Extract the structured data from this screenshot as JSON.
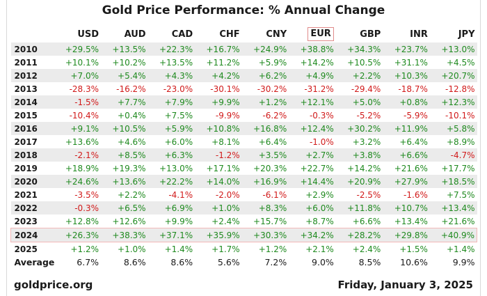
{
  "chart_data": {
    "type": "table",
    "title": "Gold Price Performance: % Annual Change",
    "columns": [
      "USD",
      "AUD",
      "CAD",
      "CHF",
      "CNY",
      "EUR",
      "GBP",
      "INR",
      "JPY"
    ],
    "highlighted_column": "EUR",
    "highlighted_row": "2024",
    "rows": [
      {
        "year": "2010",
        "values": [
          "+29.5%",
          "+13.5%",
          "+22.3%",
          "+16.7%",
          "+24.9%",
          "+38.8%",
          "+34.3%",
          "+23.7%",
          "+13.0%"
        ]
      },
      {
        "year": "2011",
        "values": [
          "+10.1%",
          "+10.2%",
          "+13.5%",
          "+11.2%",
          "+5.9%",
          "+14.2%",
          "+10.5%",
          "+31.1%",
          "+4.5%"
        ]
      },
      {
        "year": "2012",
        "values": [
          "+7.0%",
          "+5.4%",
          "+4.3%",
          "+4.2%",
          "+6.2%",
          "+4.9%",
          "+2.2%",
          "+10.3%",
          "+20.7%"
        ]
      },
      {
        "year": "2013",
        "values": [
          "-28.3%",
          "-16.2%",
          "-23.0%",
          "-30.1%",
          "-30.2%",
          "-31.2%",
          "-29.4%",
          "-18.7%",
          "-12.8%"
        ]
      },
      {
        "year": "2014",
        "values": [
          "-1.5%",
          "+7.7%",
          "+7.9%",
          "+9.9%",
          "+1.2%",
          "+12.1%",
          "+5.0%",
          "+0.8%",
          "+12.3%"
        ]
      },
      {
        "year": "2015",
        "values": [
          "-10.4%",
          "+0.4%",
          "+7.5%",
          "-9.9%",
          "-6.2%",
          "-0.3%",
          "-5.2%",
          "-5.9%",
          "-10.1%"
        ]
      },
      {
        "year": "2016",
        "values": [
          "+9.1%",
          "+10.5%",
          "+5.9%",
          "+10.8%",
          "+16.8%",
          "+12.4%",
          "+30.2%",
          "+11.9%",
          "+5.8%"
        ]
      },
      {
        "year": "2017",
        "values": [
          "+13.6%",
          "+4.6%",
          "+6.0%",
          "+8.1%",
          "+6.4%",
          "-1.0%",
          "+3.2%",
          "+6.4%",
          "+8.9%"
        ]
      },
      {
        "year": "2018",
        "values": [
          "-2.1%",
          "+8.5%",
          "+6.3%",
          "-1.2%",
          "+3.5%",
          "+2.7%",
          "+3.8%",
          "+6.6%",
          "-4.7%"
        ]
      },
      {
        "year": "2019",
        "values": [
          "+18.9%",
          "+19.3%",
          "+13.0%",
          "+17.1%",
          "+20.3%",
          "+22.7%",
          "+14.2%",
          "+21.6%",
          "+17.7%"
        ]
      },
      {
        "year": "2020",
        "values": [
          "+24.6%",
          "+13.6%",
          "+22.2%",
          "+14.0%",
          "+16.9%",
          "+14.4%",
          "+20.9%",
          "+27.9%",
          "+18.5%"
        ]
      },
      {
        "year": "2021",
        "values": [
          "-3.5%",
          "+2.2%",
          "-4.1%",
          "-2.0%",
          "-6.1%",
          "+2.9%",
          "-2.5%",
          "-1.6%",
          "+7.5%"
        ]
      },
      {
        "year": "2022",
        "values": [
          "-0.3%",
          "+6.5%",
          "+6.9%",
          "+1.0%",
          "+8.3%",
          "+6.0%",
          "+11.8%",
          "+10.7%",
          "+13.4%"
        ]
      },
      {
        "year": "2023",
        "values": [
          "+12.8%",
          "+12.6%",
          "+9.9%",
          "+2.4%",
          "+15.7%",
          "+8.7%",
          "+6.6%",
          "+13.4%",
          "+21.6%"
        ]
      },
      {
        "year": "2024",
        "values": [
          "+26.3%",
          "+38.3%",
          "+37.1%",
          "+35.9%",
          "+30.3%",
          "+34.2%",
          "+28.2%",
          "+29.8%",
          "+40.9%"
        ]
      },
      {
        "year": "2025",
        "values": [
          "+1.2%",
          "+1.0%",
          "+1.4%",
          "+1.7%",
          "+1.2%",
          "+2.1%",
          "+2.4%",
          "+1.5%",
          "+1.4%"
        ]
      }
    ],
    "average": {
      "label": "Average",
      "values": [
        "6.7%",
        "8.6%",
        "8.6%",
        "5.6%",
        "7.2%",
        "9.0%",
        "8.5%",
        "10.6%",
        "9.9%"
      ]
    },
    "colors": {
      "positive": "#1f8a1f",
      "negative": "#d11a1a",
      "stripe": "#ebebeb",
      "highlight_border": "#f2b8b8"
    }
  },
  "footer": {
    "source": "goldprice.org",
    "date": "Friday, January 3, 2025"
  }
}
